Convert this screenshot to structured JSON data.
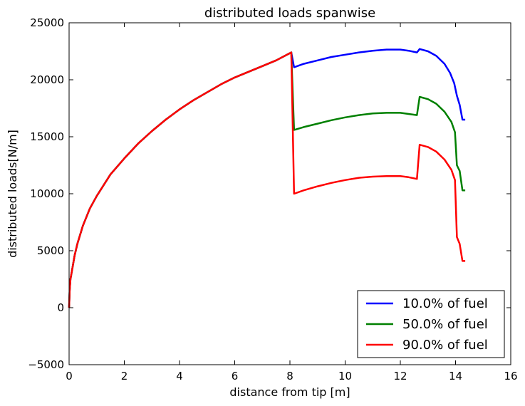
{
  "chart_data": {
    "type": "line",
    "title": "distributed loads spanwise",
    "xlabel": "distance from tip [m]",
    "ylabel": "distributed loads[N/m]",
    "xlim": [
      0,
      16
    ],
    "ylim": [
      -5000,
      25000
    ],
    "xticks": [
      0,
      2,
      4,
      6,
      8,
      10,
      12,
      14,
      16
    ],
    "yticks": [
      -5000,
      0,
      5000,
      10000,
      15000,
      20000,
      25000
    ],
    "xtick_labels": [
      "0",
      "2",
      "4",
      "6",
      "8",
      "10",
      "12",
      "14",
      "16"
    ],
    "ytick_labels": [
      "−5000",
      "0",
      "5000",
      "10000",
      "15000",
      "20000",
      "25000"
    ],
    "grid": false,
    "legend_position": "lower-right",
    "series": [
      {
        "name": "10.0% of fuel",
        "color": "#0000ff",
        "points": [
          [
            0,
            0
          ],
          [
            0.02,
            1500
          ],
          [
            0.05,
            2500
          ],
          [
            0.1,
            3200
          ],
          [
            0.2,
            4600
          ],
          [
            0.3,
            5600
          ],
          [
            0.5,
            7200
          ],
          [
            0.75,
            8700
          ],
          [
            1,
            9800
          ],
          [
            1.5,
            11700
          ],
          [
            2,
            13100
          ],
          [
            2.5,
            14400
          ],
          [
            3,
            15500
          ],
          [
            3.5,
            16500
          ],
          [
            4,
            17400
          ],
          [
            4.5,
            18200
          ],
          [
            5,
            18900
          ],
          [
            5.5,
            19600
          ],
          [
            6,
            20200
          ],
          [
            6.5,
            20700
          ],
          [
            7,
            21200
          ],
          [
            7.5,
            21700
          ],
          [
            8.05,
            22400
          ],
          [
            8.15,
            21100
          ],
          [
            8.5,
            21400
          ],
          [
            9,
            21700
          ],
          [
            9.5,
            22000
          ],
          [
            10,
            22200
          ],
          [
            10.5,
            22400
          ],
          [
            11,
            22550
          ],
          [
            11.5,
            22650
          ],
          [
            12,
            22650
          ],
          [
            12.3,
            22550
          ],
          [
            12.6,
            22400
          ],
          [
            12.7,
            22700
          ],
          [
            13,
            22500
          ],
          [
            13.3,
            22100
          ],
          [
            13.6,
            21400
          ],
          [
            13.8,
            20600
          ],
          [
            13.95,
            19700
          ],
          [
            14.05,
            18600
          ],
          [
            14.15,
            17800
          ],
          [
            14.25,
            16500
          ],
          [
            14.35,
            16500
          ]
        ]
      },
      {
        "name": "50.0% of fuel",
        "color": "#008000",
        "points": [
          [
            0,
            0
          ],
          [
            0.02,
            1500
          ],
          [
            0.05,
            2500
          ],
          [
            0.1,
            3200
          ],
          [
            0.2,
            4600
          ],
          [
            0.3,
            5600
          ],
          [
            0.5,
            7200
          ],
          [
            0.75,
            8700
          ],
          [
            1,
            9800
          ],
          [
            1.5,
            11700
          ],
          [
            2,
            13100
          ],
          [
            2.5,
            14400
          ],
          [
            3,
            15500
          ],
          [
            3.5,
            16500
          ],
          [
            4,
            17400
          ],
          [
            4.5,
            18200
          ],
          [
            5,
            18900
          ],
          [
            5.5,
            19600
          ],
          [
            6,
            20200
          ],
          [
            6.5,
            20700
          ],
          [
            7,
            21200
          ],
          [
            7.5,
            21700
          ],
          [
            8.05,
            22400
          ],
          [
            8.15,
            15600
          ],
          [
            8.5,
            15850
          ],
          [
            9,
            16150
          ],
          [
            9.5,
            16450
          ],
          [
            10,
            16700
          ],
          [
            10.5,
            16900
          ],
          [
            11,
            17050
          ],
          [
            11.5,
            17100
          ],
          [
            12,
            17100
          ],
          [
            12.3,
            17000
          ],
          [
            12.6,
            16900
          ],
          [
            12.7,
            18500
          ],
          [
            13,
            18300
          ],
          [
            13.3,
            17900
          ],
          [
            13.6,
            17200
          ],
          [
            13.85,
            16300
          ],
          [
            13.98,
            15400
          ],
          [
            14.05,
            12500
          ],
          [
            14.15,
            12000
          ],
          [
            14.25,
            10300
          ],
          [
            14.35,
            10300
          ]
        ]
      },
      {
        "name": "90.0% of fuel",
        "color": "#ff0000",
        "points": [
          [
            0,
            0
          ],
          [
            0.02,
            1500
          ],
          [
            0.05,
            2500
          ],
          [
            0.1,
            3200
          ],
          [
            0.2,
            4600
          ],
          [
            0.3,
            5600
          ],
          [
            0.5,
            7200
          ],
          [
            0.75,
            8700
          ],
          [
            1,
            9800
          ],
          [
            1.5,
            11700
          ],
          [
            2,
            13100
          ],
          [
            2.5,
            14400
          ],
          [
            3,
            15500
          ],
          [
            3.5,
            16500
          ],
          [
            4,
            17400
          ],
          [
            4.5,
            18200
          ],
          [
            5,
            18900
          ],
          [
            5.5,
            19600
          ],
          [
            6,
            20200
          ],
          [
            6.5,
            20700
          ],
          [
            7,
            21200
          ],
          [
            7.5,
            21700
          ],
          [
            8.05,
            22400
          ],
          [
            8.15,
            10000
          ],
          [
            8.5,
            10300
          ],
          [
            9,
            10650
          ],
          [
            9.5,
            10950
          ],
          [
            10,
            11200
          ],
          [
            10.5,
            11400
          ],
          [
            11,
            11500
          ],
          [
            11.5,
            11550
          ],
          [
            12,
            11550
          ],
          [
            12.3,
            11450
          ],
          [
            12.6,
            11300
          ],
          [
            12.7,
            14300
          ],
          [
            13,
            14100
          ],
          [
            13.3,
            13700
          ],
          [
            13.6,
            13000
          ],
          [
            13.85,
            12100
          ],
          [
            13.98,
            11200
          ],
          [
            14.05,
            6200
          ],
          [
            14.15,
            5600
          ],
          [
            14.25,
            4100
          ],
          [
            14.35,
            4100
          ]
        ]
      }
    ]
  }
}
